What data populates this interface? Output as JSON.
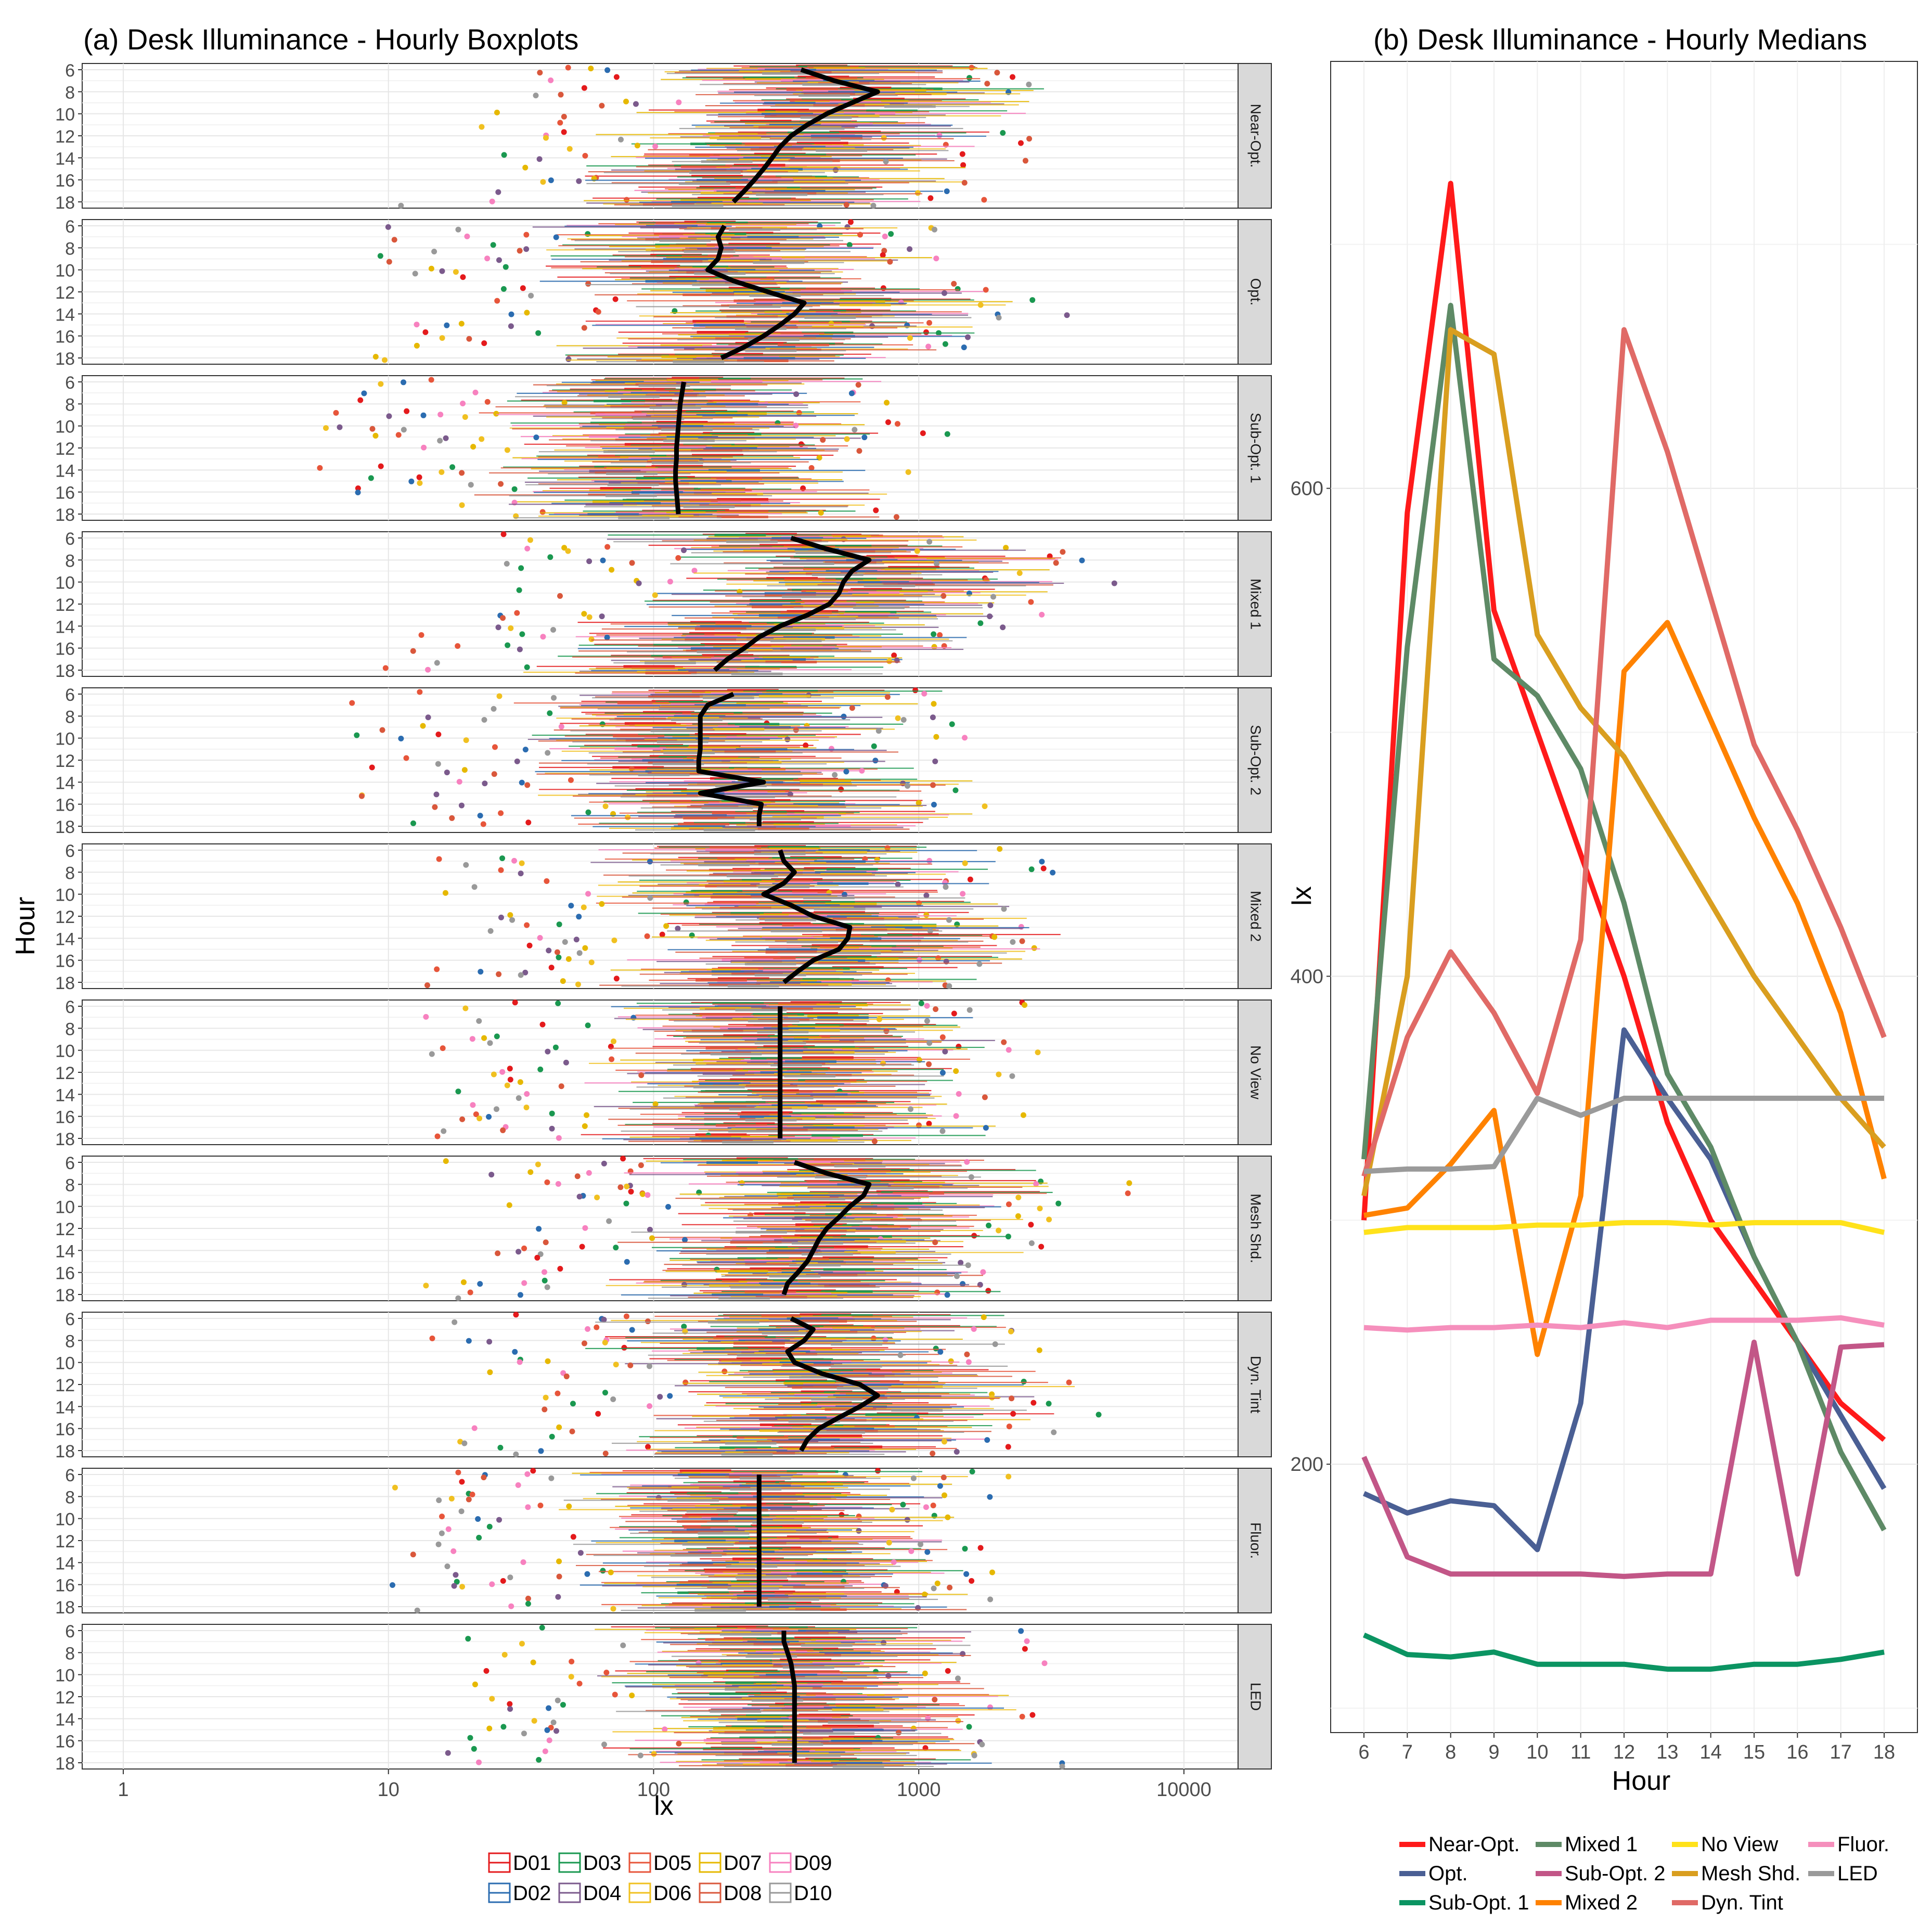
{
  "chart_data": [
    {
      "type": "boxplot",
      "title": "(a) Desk Illuminance - Hourly Boxplots",
      "xlabel": "lx",
      "ylabel": "Hour",
      "xscale": "log10",
      "xlim": [
        0.7,
        16000
      ],
      "x_ticks": [
        "1",
        "10",
        "100",
        "1000",
        "10000"
      ],
      "hour_ticks": [
        "6",
        "8",
        "10",
        "12",
        "14",
        "16",
        "18"
      ],
      "facets": [
        {
          "label": "Near-Opt.",
          "median_path": [
            360,
            480,
            700,
            560,
            450,
            380,
            330,
            300,
            280,
            260,
            240,
            220,
            200
          ]
        },
        {
          "label": "Opt.",
          "median_path": [
            185,
            175,
            180,
            175,
            160,
            200,
            270,
            370,
            340,
            300,
            260,
            220,
            180
          ]
        },
        {
          "label": "Sub-Opt. 1",
          "median_path": [
            130,
            128,
            126,
            125,
            124,
            123,
            122,
            122,
            121,
            121,
            122,
            123,
            124
          ]
        },
        {
          "label": "Mixed 1",
          "median_path": [
            330,
            450,
            650,
            560,
            520,
            500,
            460,
            380,
            300,
            250,
            220,
            190,
            170
          ]
        },
        {
          "label": "Sub-Opt. 2",
          "median_path": [
            200,
            160,
            150,
            150,
            150,
            150,
            148,
            148,
            260,
            150,
            255,
            250,
            250
          ]
        },
        {
          "label": "Mixed 2",
          "median_path": [
            300,
            310,
            340,
            310,
            260,
            330,
            400,
            550,
            540,
            500,
            400,
            350,
            310
          ]
        },
        {
          "label": "No View",
          "median_path": [
            300,
            300,
            300,
            300,
            300,
            300,
            300,
            300,
            300,
            300,
            300,
            300,
            300
          ]
        },
        {
          "label": "Mesh Shd.",
          "median_path": [
            340,
            450,
            650,
            620,
            550,
            500,
            450,
            420,
            400,
            380,
            350,
            320,
            310
          ]
        },
        {
          "label": "Dyn. Tint",
          "median_path": [
            330,
            400,
            370,
            320,
            340,
            430,
            600,
            700,
            600,
            500,
            420,
            380,
            360
          ]
        },
        {
          "label": "Fluor.",
          "median_path": [
            250,
            250,
            250,
            250,
            250,
            250,
            250,
            250,
            250,
            250,
            250,
            250,
            250
          ]
        },
        {
          "label": "LED",
          "median_path": [
            310,
            310,
            320,
            330,
            335,
            340,
            340,
            340,
            340,
            340,
            340,
            340,
            340
          ]
        }
      ],
      "legend": {
        "position": "bottom",
        "items": [
          {
            "name": "D01",
            "color": "#e41a1c"
          },
          {
            "name": "D03",
            "color": "#1a9850"
          },
          {
            "name": "D05",
            "color": "#e7553a"
          },
          {
            "name": "D07",
            "color": "#e6b800"
          },
          {
            "name": "D09",
            "color": "#f781bf"
          },
          {
            "name": "D02",
            "color": "#2b6cb0"
          },
          {
            "name": "D04",
            "color": "#7b5a8c"
          },
          {
            "name": "D06",
            "color": "#f0c020"
          },
          {
            "name": "D08",
            "color": "#d9573b"
          },
          {
            "name": "D10",
            "color": "#999999"
          }
        ]
      }
    },
    {
      "type": "line",
      "title": "(b) Desk Illuminance - Hourly Medians",
      "xlabel": "Hour",
      "ylabel": "lx",
      "x": [
        6,
        7,
        8,
        9,
        10,
        11,
        12,
        13,
        14,
        15,
        16,
        17,
        18
      ],
      "ylim": [
        90,
        775
      ],
      "y_ticks": [
        "200",
        "400",
        "600"
      ],
      "series": [
        {
          "name": "Near-Opt.",
          "color": "#ff1a1a",
          "values": [
            300,
            590,
            725,
            550,
            500,
            450,
            400,
            340,
            300,
            275,
            250,
            225,
            210
          ]
        },
        {
          "name": "Opt.",
          "color": "#4a5f94",
          "values": [
            188,
            180,
            185,
            183,
            165,
            225,
            378,
            350,
            325,
            285,
            250,
            220,
            190
          ]
        },
        {
          "name": "Sub-Opt. 1",
          "color": "#0b9462",
          "values": [
            130,
            122,
            121,
            123,
            118,
            118,
            118,
            116,
            116,
            118,
            118,
            120,
            123
          ]
        },
        {
          "name": "Mixed 1",
          "color": "#5e8a66",
          "values": [
            325,
            535,
            675,
            530,
            515,
            485,
            430,
            360,
            330,
            285,
            250,
            205,
            173
          ]
        },
        {
          "name": "Sub-Opt. 2",
          "color": "#c25687",
          "values": [
            203,
            162,
            155,
            155,
            155,
            155,
            154,
            155,
            155,
            250,
            155,
            248,
            249
          ]
        },
        {
          "name": "Mixed 2",
          "color": "#ff8200",
          "values": [
            302,
            305,
            323,
            345,
            245,
            310,
            525,
            545,
            505,
            465,
            430,
            385,
            317
          ]
        },
        {
          "name": "No View",
          "color": "#ffe21a",
          "values": [
            295,
            297,
            297,
            297,
            298,
            298,
            299,
            299,
            298,
            299,
            299,
            299,
            295
          ]
        },
        {
          "name": "Mesh Shd.",
          "color": "#d99e1f",
          "values": [
            310,
            400,
            665,
            655,
            540,
            510,
            490,
            460,
            430,
            400,
            375,
            350,
            330
          ]
        },
        {
          "name": "Dyn. Tint",
          "color": "#e06a66",
          "values": [
            318,
            375,
            410,
            385,
            352,
            415,
            665,
            615,
            555,
            495,
            460,
            420,
            375
          ]
        },
        {
          "name": "Fluor.",
          "color": "#f58fbc",
          "values": [
            256,
            255,
            256,
            256,
            257,
            256,
            258,
            256,
            259,
            259,
            259,
            260,
            257
          ]
        },
        {
          "name": "LED",
          "color": "#9a9a9a",
          "values": [
            320,
            321,
            321,
            322,
            350,
            343,
            350,
            350,
            350,
            350,
            350,
            350,
            350
          ]
        }
      ],
      "legend": {
        "position": "bottom"
      }
    }
  ]
}
